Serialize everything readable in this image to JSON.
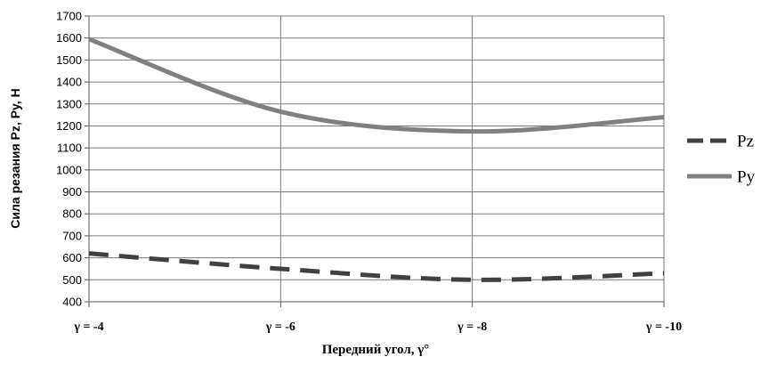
{
  "chart_data": {
    "type": "line",
    "title": "",
    "xlabel": "Передний угол, γ°",
    "ylabel": "Сила резания Pz, Py, Н",
    "categories": [
      "γ = -4",
      "γ = -6",
      "γ = -8",
      "γ = -10"
    ],
    "ylim": [
      400,
      1700
    ],
    "ytick_step": 100,
    "grid": true,
    "legend_position": "right",
    "series": [
      {
        "name": "Pz",
        "values": [
          620,
          550,
          500,
          530
        ],
        "style": "dashed",
        "color": "#404040"
      },
      {
        "name": "Py",
        "values": [
          1595,
          1265,
          1175,
          1240
        ],
        "style": "solid",
        "color": "#808080"
      }
    ]
  }
}
